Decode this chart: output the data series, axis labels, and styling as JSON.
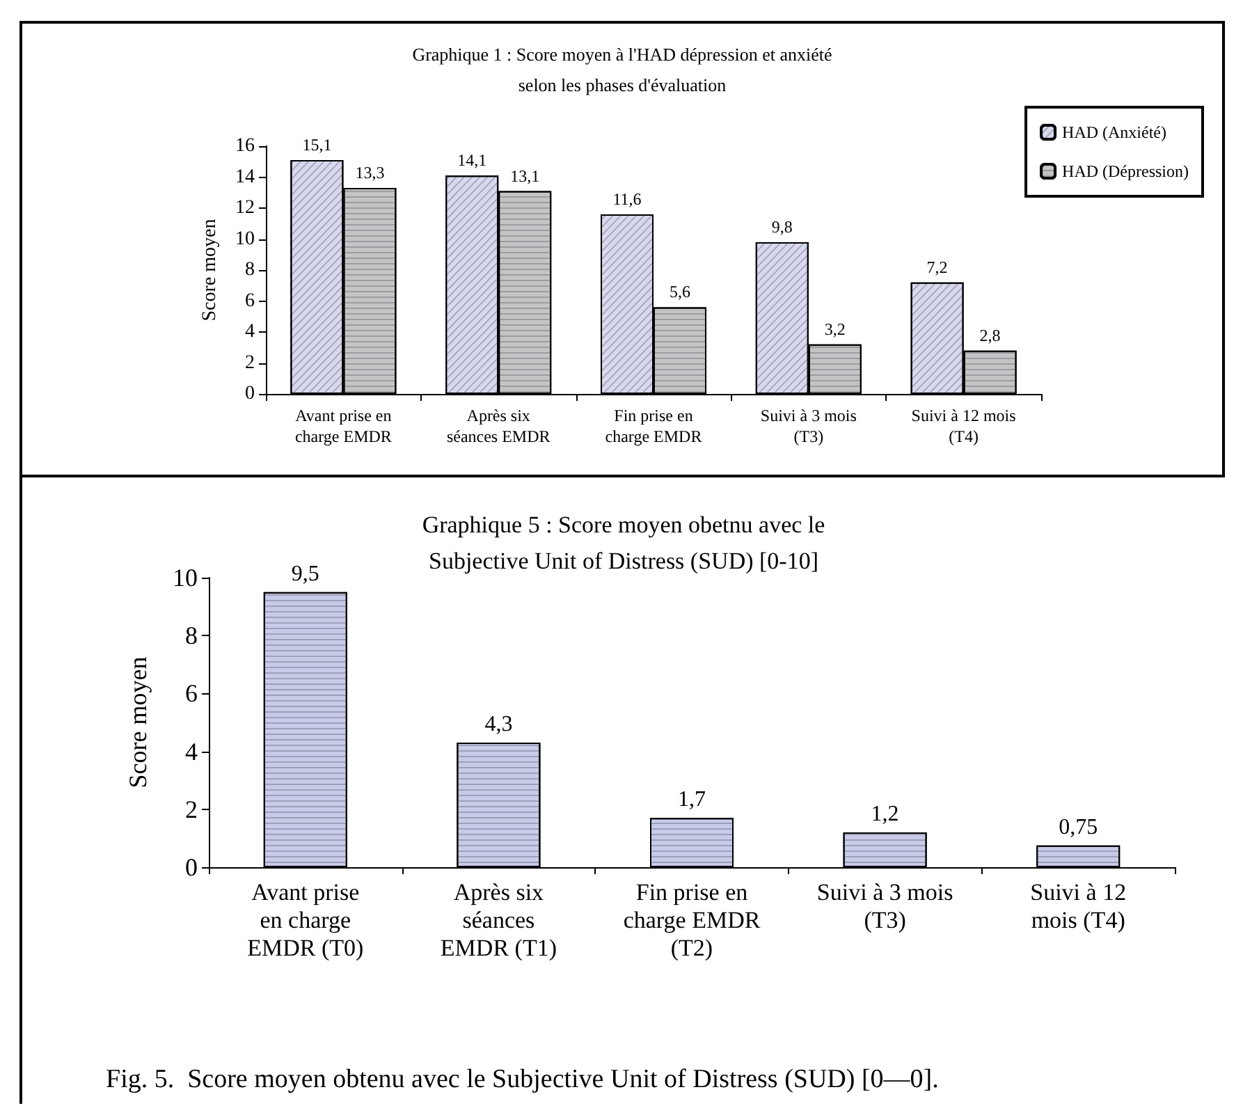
{
  "chart_data": [
    {
      "type": "bar",
      "title": "Graphique 1 : Score moyen à l'HAD dépression et anxiété\nselon les phases d'évaluation",
      "ylabel": "Score moyen",
      "categories": [
        "Avant prise en\ncharge EMDR",
        "Après six\nséances EMDR",
        "Fin prise en\ncharge EMDR",
        "Suivi à 3 mois\n(T3)",
        "Suivi à 12 mois\n(T4)"
      ],
      "series": [
        {
          "name": "HAD (Anxiété)",
          "color": "#d8d8ee",
          "values": [
            15.1,
            14.1,
            11.6,
            9.8,
            7.2
          ],
          "value_labels": [
            "15,1",
            "14,1",
            "11,6",
            "9,8",
            "7,2"
          ]
        },
        {
          "name": "HAD (Dépression)",
          "color": "#c4c4c4",
          "values": [
            13.3,
            13.1,
            5.6,
            3.2,
            2.8
          ],
          "value_labels": [
            "13,3",
            "13,1",
            "5,6",
            "3,2",
            "2,8"
          ]
        }
      ],
      "ylim": [
        0,
        16
      ],
      "yticks": [
        0,
        2,
        4,
        6,
        8,
        10,
        12,
        14,
        16
      ],
      "grid": false,
      "legend": "top right"
    },
    {
      "type": "bar",
      "title": "Graphique 5 : Score moyen obetnu avec le\nSubjective Unit of Distress (SUD) [0-10]",
      "ylabel": "Score moyen",
      "categories": [
        "Avant prise\nen charge\nEMDR (T0)",
        "Après six\nséances\nEMDR (T1)",
        "Fin prise en\ncharge EMDR\n(T2)",
        "Suivi à 3 mois\n(T3)",
        "Suivi à 12\nmois (T4)"
      ],
      "series": [
        {
          "color": "#c8cbe8",
          "values": [
            9.5,
            4.3,
            1.7,
            1.2,
            0.75
          ],
          "value_labels": [
            "9,5",
            "4,3",
            "1,7",
            "1,2",
            "0,75"
          ]
        }
      ],
      "ylim": [
        0,
        10
      ],
      "yticks": [
        0,
        2,
        4,
        6,
        8,
        10
      ],
      "grid": false,
      "annotations": [
        "Fig. 5.  Score moyen obtenu avec le Subjective Unit of Distress (SUD) [0—0]."
      ]
    }
  ]
}
